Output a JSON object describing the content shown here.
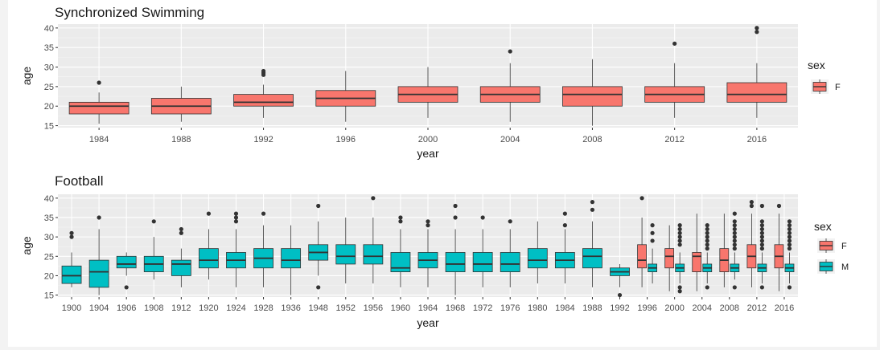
{
  "chart_data": [
    {
      "type": "box",
      "title": "Synchronized Swimming",
      "xlabel": "year",
      "ylabel": "age",
      "categories": [
        "1984",
        "1988",
        "1992",
        "1996",
        "2000",
        "2004",
        "2008",
        "2012",
        "2016"
      ],
      "ylim": [
        14.5,
        41
      ],
      "yticks": [
        15,
        20,
        25,
        30,
        35,
        40
      ],
      "grid": true,
      "legend": {
        "title": "sex",
        "position": "right",
        "entries": [
          "F"
        ]
      },
      "series": [
        {
          "name": "F",
          "color": "#F8766D",
          "boxes": [
            {
              "x": "1984",
              "min": 15.5,
              "q1": 18,
              "median": 20,
              "q3": 21,
              "max": 23.5,
              "outliers": [
                26
              ]
            },
            {
              "x": "1988",
              "min": 16,
              "q1": 18,
              "median": 20,
              "q3": 22,
              "max": 25,
              "outliers": []
            },
            {
              "x": "1992",
              "min": 17,
              "q1": 20,
              "median": 21,
              "q3": 23,
              "max": 25.5,
              "outliers": [
                28,
                28.5,
                29
              ]
            },
            {
              "x": "1996",
              "min": 16,
              "q1": 20,
              "median": 22,
              "q3": 24,
              "max": 29,
              "outliers": []
            },
            {
              "x": "2000",
              "min": 17,
              "q1": 21,
              "median": 23,
              "q3": 25,
              "max": 30,
              "outliers": []
            },
            {
              "x": "2004",
              "min": 16,
              "q1": 21,
              "median": 23,
              "q3": 25,
              "max": 31,
              "outliers": [
                34
              ]
            },
            {
              "x": "2008",
              "min": 15,
              "q1": 20,
              "median": 23,
              "q3": 25,
              "max": 32,
              "outliers": []
            },
            {
              "x": "2012",
              "min": 17,
              "q1": 21,
              "median": 23,
              "q3": 25,
              "max": 31,
              "outliers": [
                36
              ]
            },
            {
              "x": "2016",
              "min": 17,
              "q1": 21,
              "median": 23,
              "q3": 26,
              "max": 31,
              "outliers": [
                39,
                40
              ]
            }
          ]
        }
      ]
    },
    {
      "type": "box",
      "title": "Football",
      "xlabel": "year",
      "ylabel": "age",
      "categories": [
        "1900",
        "1904",
        "1906",
        "1908",
        "1912",
        "1920",
        "1924",
        "1928",
        "1936",
        "1948",
        "1952",
        "1956",
        "1960",
        "1964",
        "1968",
        "1972",
        "1976",
        "1980",
        "1984",
        "1988",
        "1992",
        "1996",
        "2000",
        "2004",
        "2008",
        "2012",
        "2016"
      ],
      "ylim": [
        14.5,
        41
      ],
      "yticks": [
        15,
        20,
        25,
        30,
        35,
        40
      ],
      "grid": true,
      "legend": {
        "title": "sex",
        "position": "right",
        "entries": [
          "F",
          "M"
        ]
      },
      "series": [
        {
          "name": "F",
          "color": "#F8766D",
          "boxes": [
            {
              "x": "1996",
              "min": 17,
              "q1": 22,
              "median": 24,
              "q3": 28,
              "max": 35,
              "outliers": [
                40
              ]
            },
            {
              "x": "2000",
              "min": 16,
              "q1": 22,
              "median": 25,
              "q3": 27,
              "max": 33,
              "outliers": []
            },
            {
              "x": "2004",
              "min": 16,
              "q1": 21,
              "median": 25,
              "q3": 26,
              "max": 36,
              "outliers": []
            },
            {
              "x": "2008",
              "min": 17,
              "q1": 21,
              "median": 24,
              "q3": 27,
              "max": 36,
              "outliers": []
            },
            {
              "x": "2012",
              "min": 17,
              "q1": 22,
              "median": 25,
              "q3": 28,
              "max": 36,
              "outliers": [
                38,
                39
              ]
            },
            {
              "x": "2016",
              "min": 16,
              "q1": 22,
              "median": 25,
              "q3": 28,
              "max": 36,
              "outliers": [
                38
              ]
            }
          ]
        },
        {
          "name": "M",
          "color": "#00BFC4",
          "boxes": [
            {
              "x": "1900",
              "min": 17,
              "q1": 18,
              "median": 20,
              "q3": 22.5,
              "max": 26,
              "outliers": [
                30,
                31
              ]
            },
            {
              "x": "1904",
              "min": 15,
              "q1": 17,
              "median": 21,
              "q3": 24,
              "max": 32,
              "outliers": [
                35
              ]
            },
            {
              "x": "1906",
              "min": 20,
              "q1": 22,
              "median": 23,
              "q3": 25,
              "max": 26,
              "outliers": [
                17
              ]
            },
            {
              "x": "1908",
              "min": 19,
              "q1": 21,
              "median": 23,
              "q3": 25,
              "max": 30,
              "outliers": [
                34
              ]
            },
            {
              "x": "1912",
              "min": 17,
              "q1": 20,
              "median": 23,
              "q3": 24,
              "max": 27,
              "outliers": [
                31,
                32
              ]
            },
            {
              "x": "1920",
              "min": 19,
              "q1": 22,
              "median": 24,
              "q3": 27,
              "max": 32,
              "outliers": [
                36
              ]
            },
            {
              "x": "1924",
              "min": 17,
              "q1": 22,
              "median": 24,
              "q3": 26,
              "max": 32,
              "outliers": [
                34,
                35,
                36
              ]
            },
            {
              "x": "1928",
              "min": 17,
              "q1": 22,
              "median": 24.5,
              "q3": 27,
              "max": 33,
              "outliers": [
                36
              ]
            },
            {
              "x": "1936",
              "min": 15,
              "q1": 22,
              "median": 24,
              "q3": 27,
              "max": 33,
              "outliers": []
            },
            {
              "x": "1948",
              "min": 20,
              "q1": 24,
              "median": 26,
              "q3": 28,
              "max": 34,
              "outliers": [
                17,
                38
              ]
            },
            {
              "x": "1952",
              "min": 18,
              "q1": 23,
              "median": 25,
              "q3": 28,
              "max": 35,
              "outliers": []
            },
            {
              "x": "1956",
              "min": 18,
              "q1": 23,
              "median": 25,
              "q3": 28,
              "max": 35,
              "outliers": [
                40
              ]
            },
            {
              "x": "1960",
              "min": 17,
              "q1": 21,
              "median": 22,
              "q3": 26,
              "max": 32,
              "outliers": [
                34,
                35
              ]
            },
            {
              "x": "1964",
              "min": 17,
              "q1": 22,
              "median": 24,
              "q3": 26,
              "max": 32,
              "outliers": [
                33,
                34
              ]
            },
            {
              "x": "1968",
              "min": 15,
              "q1": 21,
              "median": 23,
              "q3": 26,
              "max": 32,
              "outliers": [
                35,
                38
              ]
            },
            {
              "x": "1972",
              "min": 17,
              "q1": 21,
              "median": 23,
              "q3": 26,
              "max": 32,
              "outliers": [
                35
              ]
            },
            {
              "x": "1976",
              "min": 17,
              "q1": 21,
              "median": 23,
              "q3": 26,
              "max": 32,
              "outliers": [
                34
              ]
            },
            {
              "x": "1980",
              "min": 18,
              "q1": 22,
              "median": 24,
              "q3": 27,
              "max": 34,
              "outliers": []
            },
            {
              "x": "1984",
              "min": 18,
              "q1": 22,
              "median": 24,
              "q3": 26,
              "max": 32,
              "outliers": [
                33,
                36
              ]
            },
            {
              "x": "1988",
              "min": 17,
              "q1": 22,
              "median": 25,
              "q3": 27,
              "max": 34,
              "outliers": [
                37,
                39
              ]
            },
            {
              "x": "1992",
              "min": 17,
              "q1": 20,
              "median": 21,
              "q3": 22,
              "max": 23,
              "outliers": [
                15
              ]
            },
            {
              "x": "1996",
              "min": 18,
              "q1": 21,
              "median": 22,
              "q3": 23,
              "max": 27,
              "outliers": [
                29,
                31,
                33
              ]
            },
            {
              "x": "2000",
              "min": 18,
              "q1": 21,
              "median": 22,
              "q3": 23,
              "max": 26,
              "outliers": [
                16,
                17,
                28,
                29,
                30,
                31,
                32,
                33
              ]
            },
            {
              "x": "2004",
              "min": 18,
              "q1": 21,
              "median": 22,
              "q3": 23,
              "max": 26,
              "outliers": [
                17,
                27,
                28,
                29,
                30,
                31,
                32,
                33
              ]
            },
            {
              "x": "2008",
              "min": 19,
              "q1": 21,
              "median": 22,
              "q3": 23,
              "max": 26,
              "outliers": [
                17,
                27,
                28,
                29,
                30,
                31,
                32,
                33,
                34,
                36
              ]
            },
            {
              "x": "2012",
              "min": 18,
              "q1": 21,
              "median": 22,
              "q3": 23,
              "max": 26,
              "outliers": [
                17,
                27,
                28,
                29,
                30,
                31,
                32,
                33,
                34,
                38
              ]
            },
            {
              "x": "2016",
              "min": 18,
              "q1": 21,
              "median": 22,
              "q3": 23,
              "max": 26,
              "outliers": [
                17,
                27,
                28,
                29,
                30,
                31,
                32,
                33,
                34
              ]
            }
          ]
        }
      ]
    }
  ]
}
